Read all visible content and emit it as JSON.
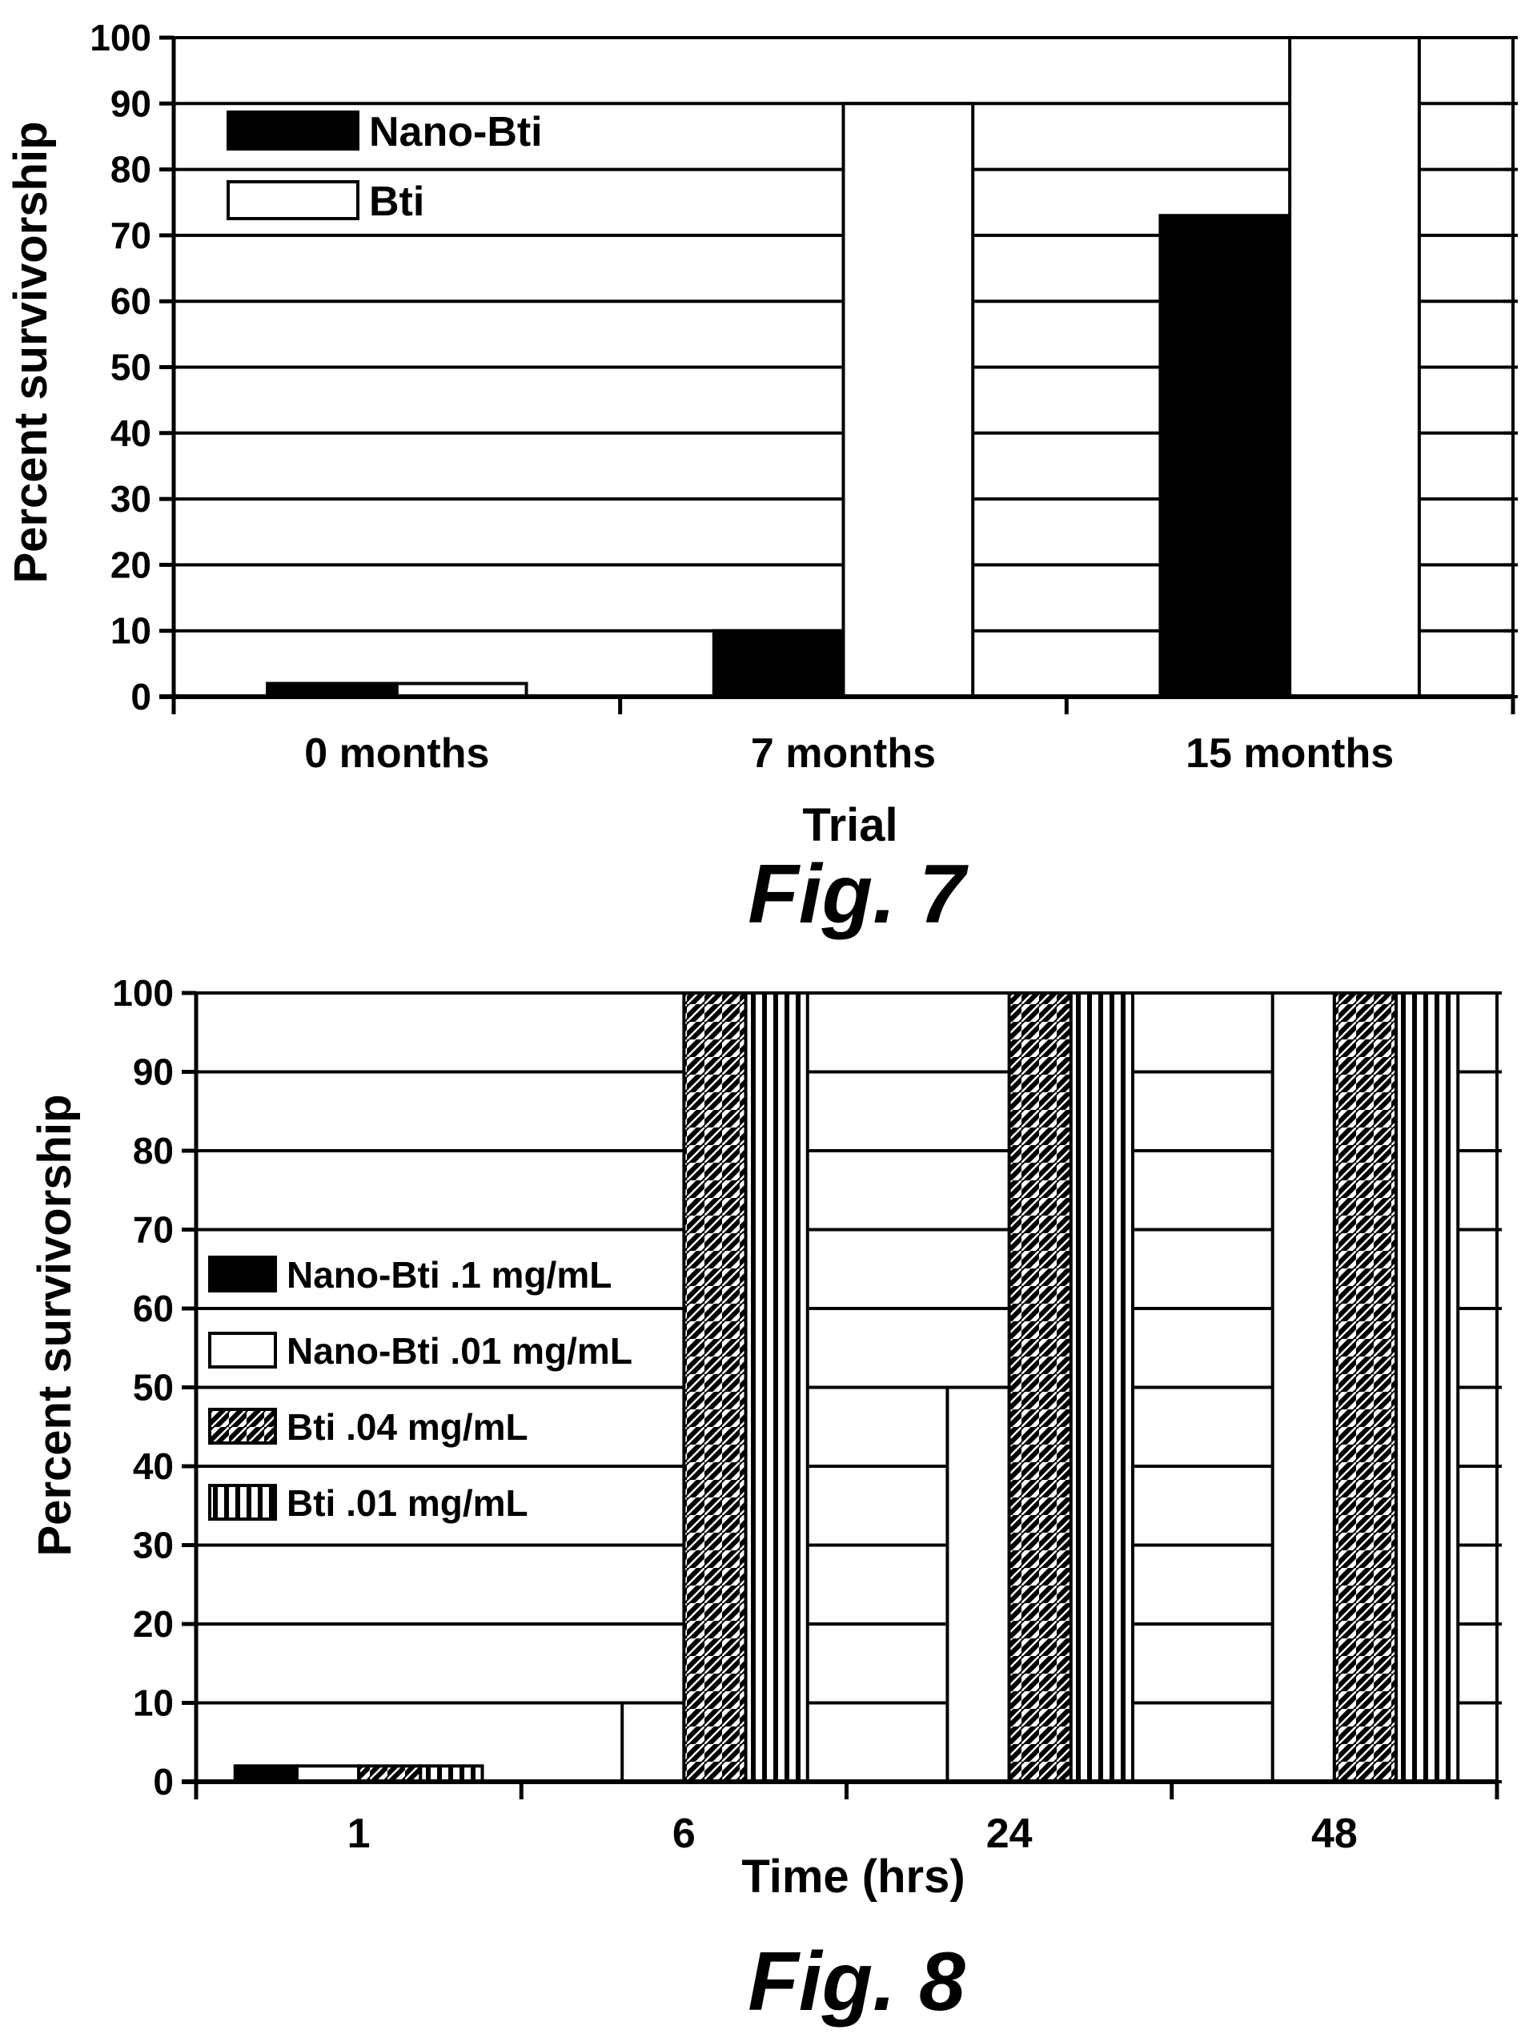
{
  "chart_data": [
    {
      "type": "bar",
      "figure": "Fig. 7",
      "categories": [
        "0 months",
        "7 months",
        "15 months"
      ],
      "series": [
        {
          "name": "Nano-Bti",
          "fill": "solid-black",
          "values": [
            2,
            10,
            73
          ]
        },
        {
          "name": "Bti",
          "fill": "white",
          "values": [
            2,
            90,
            100
          ]
        }
      ],
      "title": "",
      "xlabel": "Trial",
      "ylabel": "Percent survivorship",
      "ylim": [
        0,
        100
      ],
      "yticks": [
        "0",
        "10",
        "20",
        "30",
        "40",
        "50",
        "60",
        "70",
        "80",
        "90",
        "100"
      ],
      "grid": "horizontal",
      "legend": "top-left"
    },
    {
      "type": "bar",
      "figure": "Fig. 8",
      "categories": [
        "1",
        "6",
        "24",
        "48"
      ],
      "series": [
        {
          "name": "Nano-Bti .1 mg/mL",
          "fill": "solid-black",
          "values": [
            2,
            0,
            0,
            0
          ]
        },
        {
          "name": "Nano-Bti .01 mg/mL",
          "fill": "white",
          "values": [
            2,
            10,
            50,
            100
          ]
        },
        {
          "name": "Bti .04 mg/mL",
          "fill": "diagonal-hatch",
          "values": [
            2,
            100,
            100,
            100
          ]
        },
        {
          "name": "Bti .01 mg/mL",
          "fill": "vertical-hatch",
          "values": [
            2,
            100,
            100,
            100
          ]
        }
      ],
      "title": "",
      "xlabel": "Time (hrs)",
      "ylabel": "Percent survivorship",
      "ylim": [
        0,
        100
      ],
      "yticks": [
        "0",
        "10",
        "20",
        "30",
        "40",
        "50",
        "60",
        "70",
        "80",
        "90",
        "100"
      ],
      "grid": "horizontal",
      "legend": "middle-left"
    }
  ],
  "captions": {
    "fig7": "Fig. 7",
    "fig8": "Fig. 8"
  }
}
